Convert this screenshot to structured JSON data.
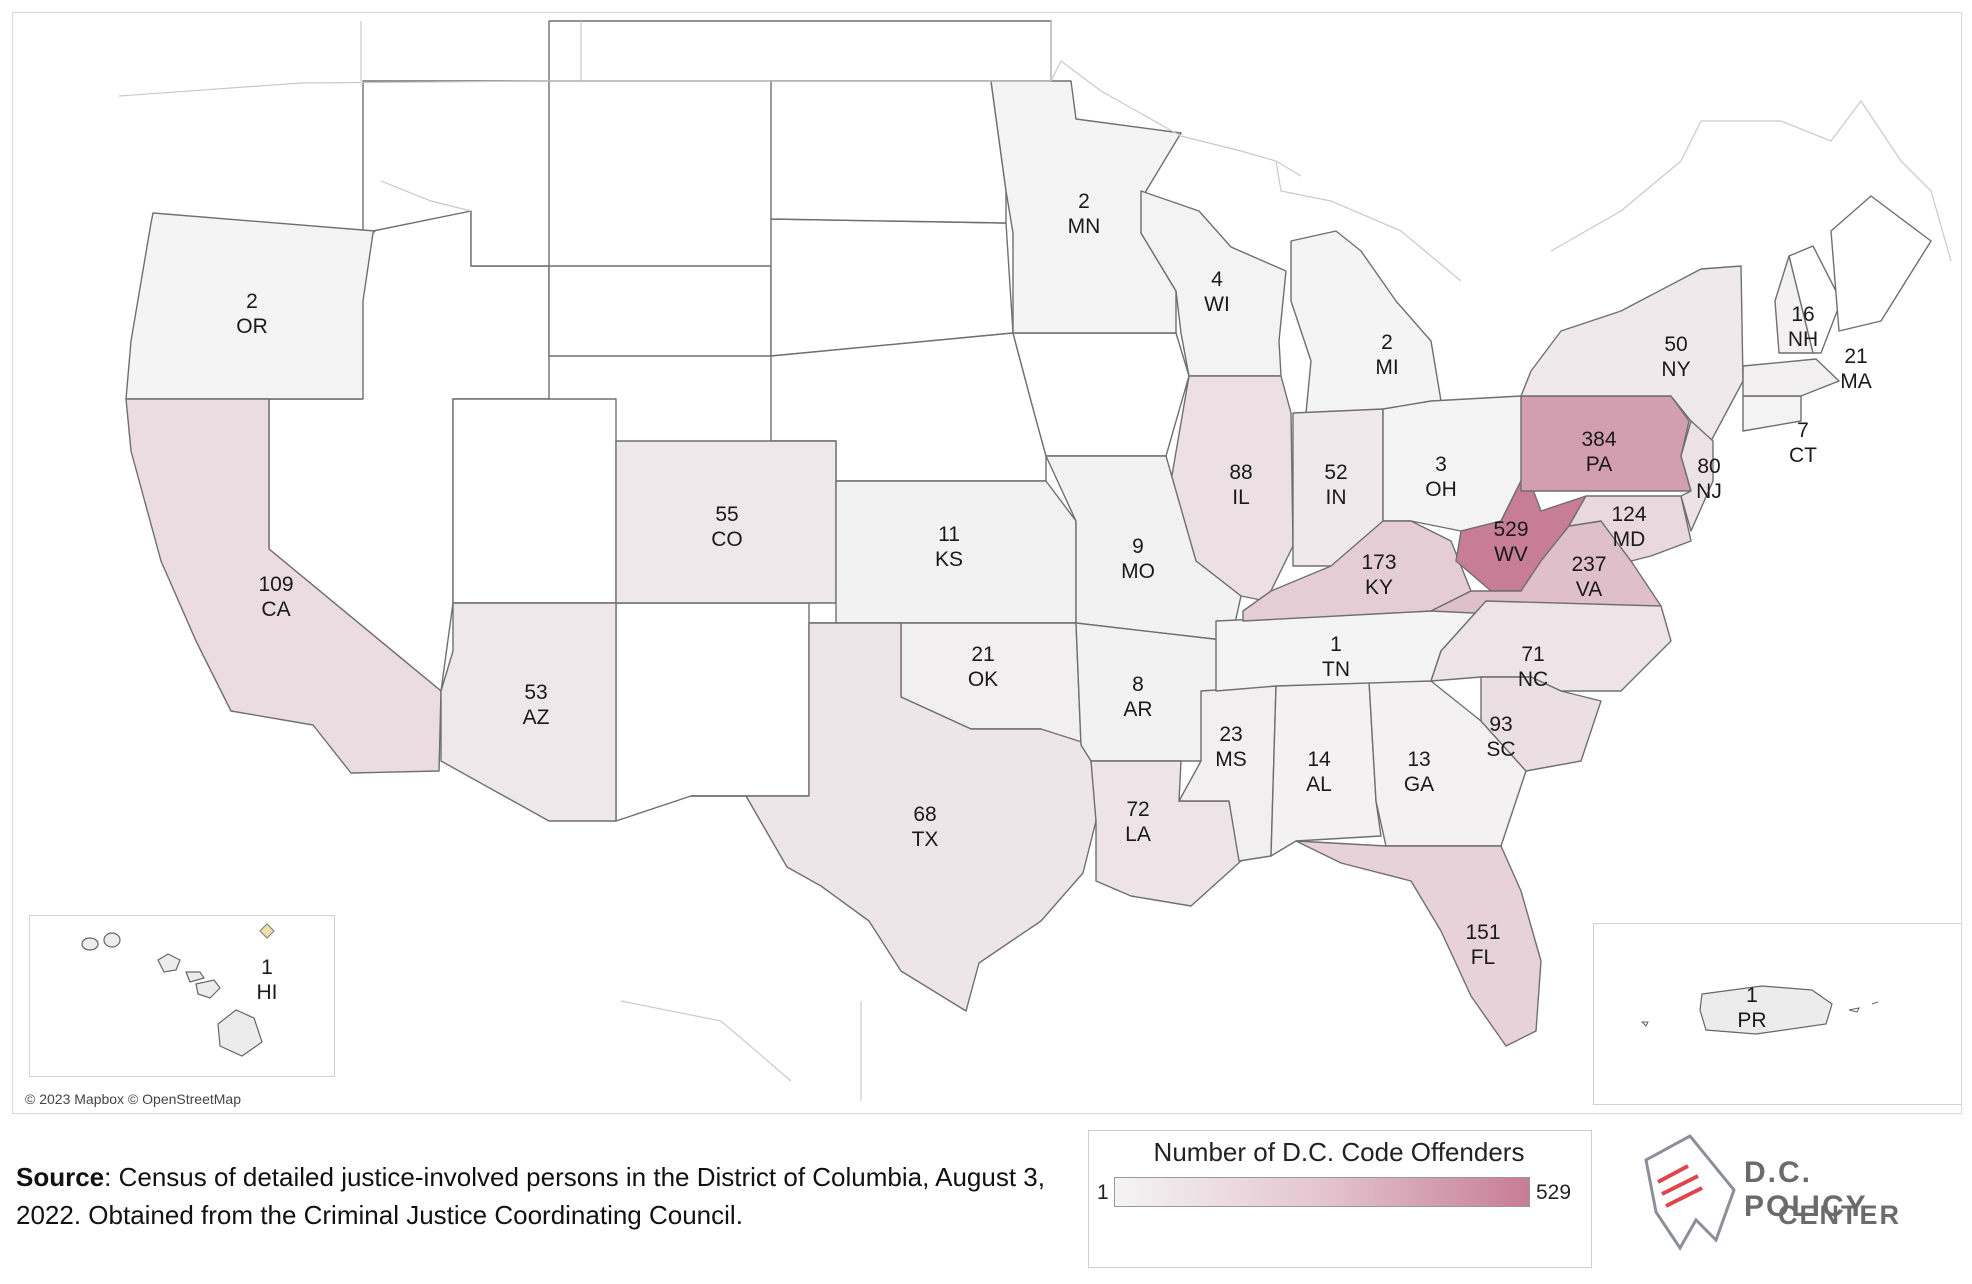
{
  "map": {
    "attribution": "© 2023 Mapbox © OpenStreetMap",
    "states": [
      {
        "abbr": "OR",
        "value": "2"
      },
      {
        "abbr": "CA",
        "value": "109"
      },
      {
        "abbr": "AZ",
        "value": "53"
      },
      {
        "abbr": "CO",
        "value": "55"
      },
      {
        "abbr": "KS",
        "value": "11"
      },
      {
        "abbr": "OK",
        "value": "21"
      },
      {
        "abbr": "TX",
        "value": "68"
      },
      {
        "abbr": "MN",
        "value": "2"
      },
      {
        "abbr": "WI",
        "value": "4"
      },
      {
        "abbr": "MI",
        "value": "2"
      },
      {
        "abbr": "IL",
        "value": "88"
      },
      {
        "abbr": "IN",
        "value": "52"
      },
      {
        "abbr": "OH",
        "value": "3"
      },
      {
        "abbr": "MO",
        "value": "9"
      },
      {
        "abbr": "AR",
        "value": "8"
      },
      {
        "abbr": "LA",
        "value": "72"
      },
      {
        "abbr": "MS",
        "value": "23"
      },
      {
        "abbr": "AL",
        "value": "14"
      },
      {
        "abbr": "GA",
        "value": "13"
      },
      {
        "abbr": "FL",
        "value": "151"
      },
      {
        "abbr": "TN",
        "value": "1"
      },
      {
        "abbr": "KY",
        "value": "173"
      },
      {
        "abbr": "WV",
        "value": "529"
      },
      {
        "abbr": "VA",
        "value": "237"
      },
      {
        "abbr": "NC",
        "value": "71"
      },
      {
        "abbr": "SC",
        "value": "93"
      },
      {
        "abbr": "MD",
        "value": "124"
      },
      {
        "abbr": "PA",
        "value": "384"
      },
      {
        "abbr": "NY",
        "value": "50"
      },
      {
        "abbr": "NJ",
        "value": "80"
      },
      {
        "abbr": "CT",
        "value": "7"
      },
      {
        "abbr": "NH",
        "value": "16"
      },
      {
        "abbr": "MA",
        "value": "21"
      },
      {
        "abbr": "HI",
        "value": "1"
      },
      {
        "abbr": "PR",
        "value": "1"
      }
    ]
  },
  "source": {
    "label": "Source",
    "text": ": Census of detailed justice-involved persons in the District of Columbia, August 3, 2022. Obtained from the Criminal Justice Coordinating Council."
  },
  "legend": {
    "title": "Number of D.C. Code Offenders",
    "min": "1",
    "max": "529",
    "color_low": "#f4f4f4",
    "color_high": "#c67d95"
  },
  "logo": {
    "line1": "D.C. POLICY",
    "line2": "CENTER"
  }
}
